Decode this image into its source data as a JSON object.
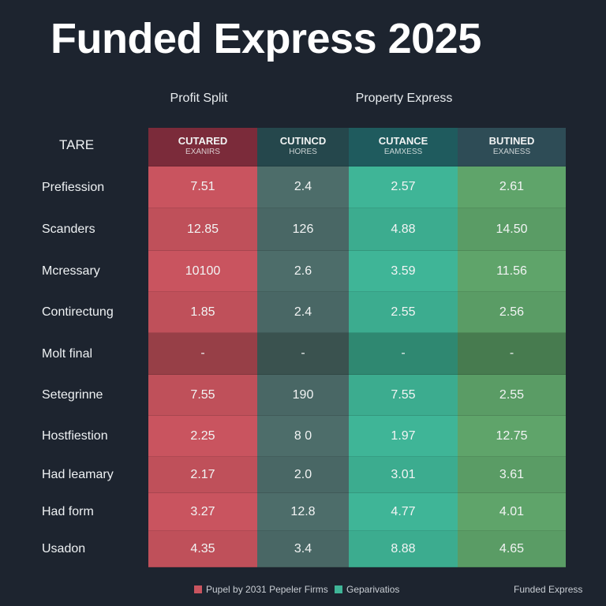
{
  "header": {
    "title": "Funded Express 2025"
  },
  "groups": [
    "Profit Split",
    "Property Express"
  ],
  "table": {
    "corner": "TARE",
    "columns": [
      [
        "CUTARED",
        "EXANIRS"
      ],
      [
        "CUTINCD",
        "HORES"
      ],
      [
        "CUTANCE",
        "EAMXESS"
      ],
      [
        "BUTINED",
        "EXANESS"
      ]
    ],
    "rows": [
      [
        "Prefiession",
        "7.51",
        "2.4",
        "2.57",
        "2.61"
      ],
      [
        "Scanders",
        "12.85",
        "126",
        "4.88",
        "14.50"
      ],
      [
        "Mcressary",
        "10100",
        "2.6",
        "3.59",
        "11.56"
      ],
      [
        "Contirectung",
        "1.85",
        "2.4",
        "2.55",
        "2.56"
      ],
      [
        "Molt final",
        "-",
        "-",
        "-",
        "-"
      ],
      [
        "Setegrinne",
        "7.55",
        "190",
        "7.55",
        "2.55"
      ],
      [
        "Hostfiestion",
        "2.25",
        "8 0",
        "1.97",
        "12.75"
      ],
      [
        "Had leamary",
        "2.17",
        "2.0",
        "3.01",
        "3.61"
      ],
      [
        "Had form",
        "3.27",
        "12.8",
        "4.77",
        "4.01"
      ],
      [
        "Usadon",
        "4.35",
        "3.4",
        "8.88",
        "4.65"
      ]
    ]
  },
  "legend": [
    "Pupel by 2031 Pepeler Firms",
    "Geparivatios"
  ],
  "footer": "Funded Express"
}
